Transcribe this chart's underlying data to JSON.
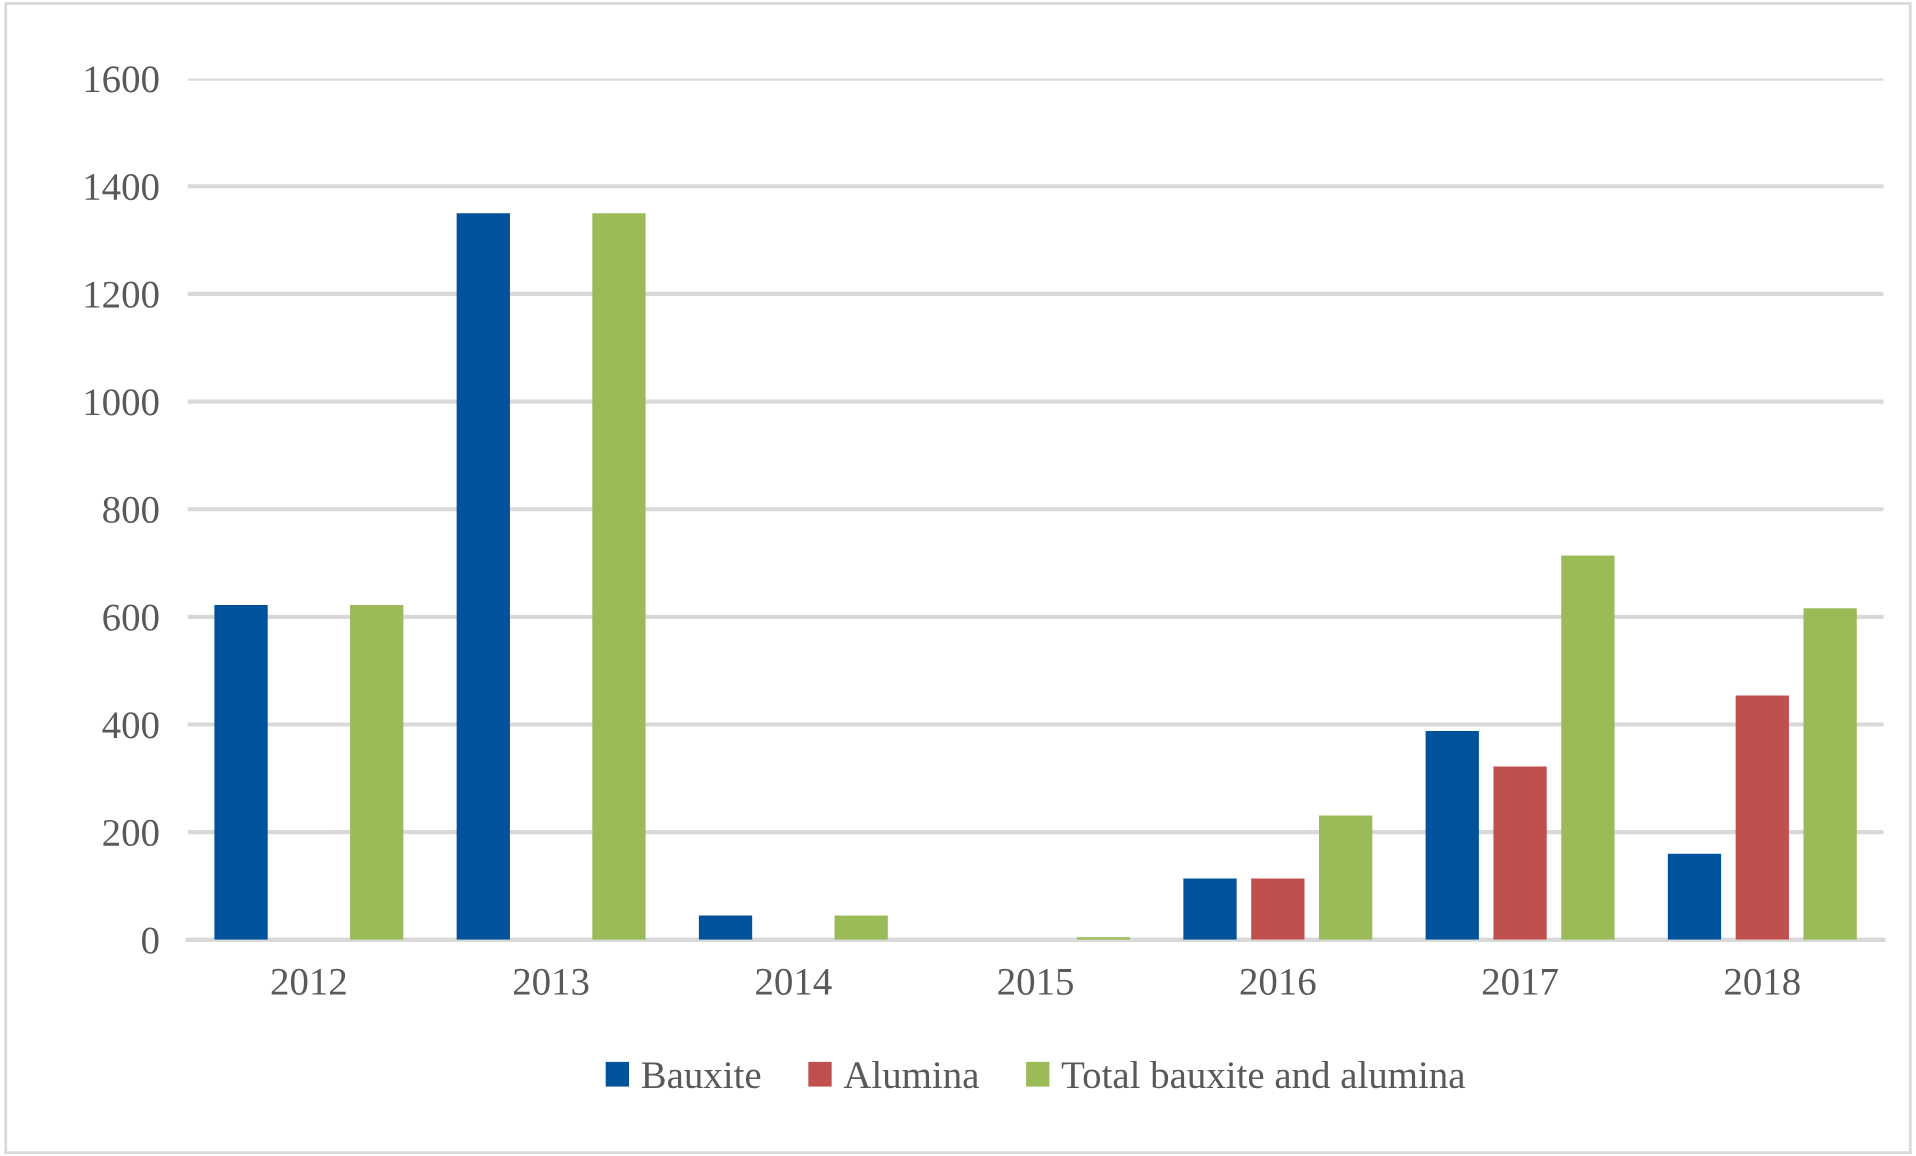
{
  "chart_data": {
    "type": "bar",
    "categories": [
      "2012",
      "2013",
      "2014",
      "2015",
      "2016",
      "2017",
      "2018"
    ],
    "series": [
      {
        "name": "Bauxite",
        "color": "#00539b",
        "values": [
          622,
          1350,
          45,
          0,
          114,
          388,
          160
        ]
      },
      {
        "name": "Alumina",
        "color": "#c0504d",
        "values": [
          0,
          0,
          0,
          0,
          114,
          322,
          454
        ]
      },
      {
        "name": "Total bauxite and alumina",
        "color": "#9bbb59",
        "values": [
          622,
          1350,
          45,
          5,
          231,
          714,
          616
        ]
      }
    ],
    "ylim": [
      0,
      1600
    ],
    "yticks": [
      0,
      200,
      400,
      600,
      800,
      1000,
      1200,
      1400,
      1600
    ],
    "grid": "y",
    "legend": "bottom"
  }
}
